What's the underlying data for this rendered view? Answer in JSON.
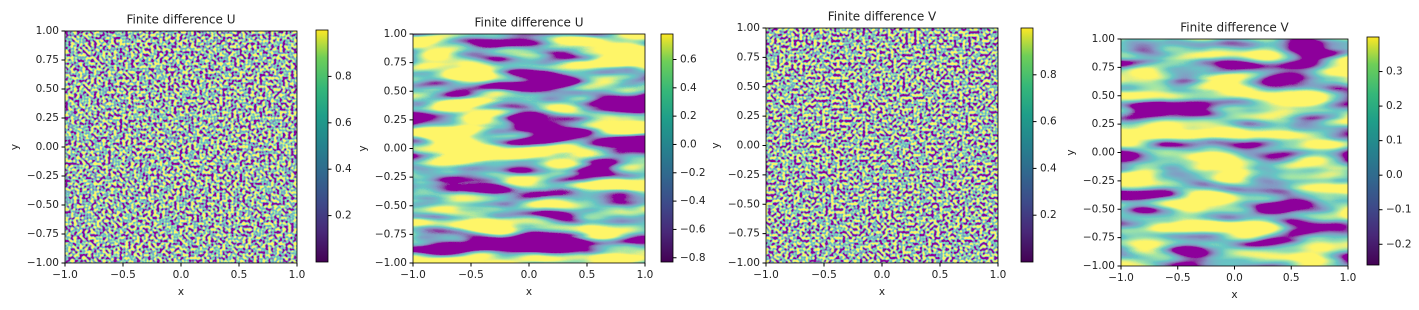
{
  "chart_data": [
    {
      "type": "heatmap",
      "title": "Finite difference U",
      "x_label": "x",
      "y_label": "y",
      "colormap": "viridis",
      "xlim": [
        -1,
        1
      ],
      "ylim": [
        -1,
        1
      ],
      "xticks": [
        {
          "value": -1,
          "label": "−1.0"
        },
        {
          "value": -0.5,
          "label": "−0.5"
        },
        {
          "value": 0,
          "label": "0.0"
        },
        {
          "value": 0.5,
          "label": "0.5"
        },
        {
          "value": 1,
          "label": "1.0"
        }
      ],
      "yticks": [
        {
          "value": -1,
          "label": "−1.00"
        },
        {
          "value": -0.75,
          "label": "−0.75"
        },
        {
          "value": -0.5,
          "label": "−0.50"
        },
        {
          "value": -0.25,
          "label": "−0.25"
        },
        {
          "value": 0,
          "label": "0.00"
        },
        {
          "value": 0.25,
          "label": "0.25"
        },
        {
          "value": 0.5,
          "label": "0.50"
        },
        {
          "value": 0.75,
          "label": "0.75"
        },
        {
          "value": 1,
          "label": "1.00"
        }
      ],
      "clim": [
        0,
        1
      ],
      "cticks": [
        0.2,
        0.4,
        0.6,
        0.8
      ]
    },
    {
      "type": "heatmap",
      "title": "Finite difference U",
      "x_label": "x",
      "y_label": "y",
      "colormap": "viridis",
      "xlim": [
        -1,
        1
      ],
      "ylim": [
        -1,
        1
      ],
      "xticks": [
        {
          "value": -1,
          "label": "−1.0"
        },
        {
          "value": -0.5,
          "label": "−0.5"
        },
        {
          "value": 0,
          "label": "0.0"
        },
        {
          "value": 0.5,
          "label": "0.5"
        },
        {
          "value": 1,
          "label": "1.0"
        }
      ],
      "yticks": [
        {
          "value": -1,
          "label": "−1.00"
        },
        {
          "value": -0.75,
          "label": "−0.75"
        },
        {
          "value": -0.5,
          "label": "−0.50"
        },
        {
          "value": -0.25,
          "label": "−0.25"
        },
        {
          "value": 0,
          "label": "0.00"
        },
        {
          "value": 0.25,
          "label": "0.25"
        },
        {
          "value": 0.5,
          "label": "0.50"
        },
        {
          "value": 0.75,
          "label": "0.75"
        },
        {
          "value": 1,
          "label": "1.00"
        }
      ],
      "clim": [
        -0.83,
        0.78
      ],
      "cticks": [
        {
          "value": -0.8,
          "label": "−0.8"
        },
        {
          "value": -0.6,
          "label": "−0.6"
        },
        {
          "value": -0.4,
          "label": "−0.4"
        },
        {
          "value": -0.2,
          "label": "−0.2"
        },
        {
          "value": 0,
          "label": "0.0"
        },
        0.2,
        0.4,
        0.6
      ]
    },
    {
      "type": "heatmap",
      "title": "Finite difference V",
      "x_label": "x",
      "y_label": "y",
      "colormap": "viridis",
      "xlim": [
        -1,
        1
      ],
      "ylim": [
        -1,
        1
      ],
      "xticks": [
        {
          "value": -1,
          "label": "−1.0"
        },
        {
          "value": -0.5,
          "label": "−0.5"
        },
        {
          "value": 0,
          "label": "0.0"
        },
        {
          "value": 0.5,
          "label": "0.5"
        },
        {
          "value": 1,
          "label": "1.0"
        }
      ],
      "yticks": [
        {
          "value": -1,
          "label": "−1.00"
        },
        {
          "value": -0.75,
          "label": "−0.75"
        },
        {
          "value": -0.5,
          "label": "−0.50"
        },
        {
          "value": -0.25,
          "label": "−0.25"
        },
        {
          "value": 0,
          "label": "0.00"
        },
        {
          "value": 0.25,
          "label": "0.25"
        },
        {
          "value": 0.5,
          "label": "0.50"
        },
        {
          "value": 0.75,
          "label": "0.75"
        },
        {
          "value": 1,
          "label": "1.00"
        }
      ],
      "clim": [
        0,
        1
      ],
      "cticks": [
        0.2,
        0.4,
        0.6,
        0.8
      ]
    },
    {
      "type": "heatmap",
      "title": "Finite difference V",
      "x_label": "x",
      "y_label": "y",
      "colormap": "viridis",
      "xlim": [
        -1,
        1
      ],
      "ylim": [
        -1,
        1
      ],
      "xticks": [
        {
          "value": -1,
          "label": "−1.0"
        },
        {
          "value": -0.5,
          "label": "−0.5"
        },
        {
          "value": 0,
          "label": "0.0"
        },
        {
          "value": 0.5,
          "label": "0.5"
        },
        {
          "value": 1,
          "label": "1.0"
        }
      ],
      "yticks": [
        {
          "value": -1,
          "label": "−1.00"
        },
        {
          "value": -0.75,
          "label": "−0.75"
        },
        {
          "value": -0.5,
          "label": "−0.50"
        },
        {
          "value": -0.25,
          "label": "−0.25"
        },
        {
          "value": 0,
          "label": "0.00"
        },
        {
          "value": 0.25,
          "label": "0.25"
        },
        {
          "value": 0.5,
          "label": "0.50"
        },
        {
          "value": 0.75,
          "label": "0.75"
        },
        {
          "value": 1,
          "label": "1.00"
        }
      ],
      "clim": [
        -0.26,
        0.4
      ],
      "cticks": [
        {
          "value": -0.2,
          "label": "−0.2"
        },
        {
          "value": -0.1,
          "label": "−0.1"
        },
        {
          "value": 0,
          "label": "0.0"
        },
        0.1,
        0.2,
        0.3
      ]
    }
  ]
}
